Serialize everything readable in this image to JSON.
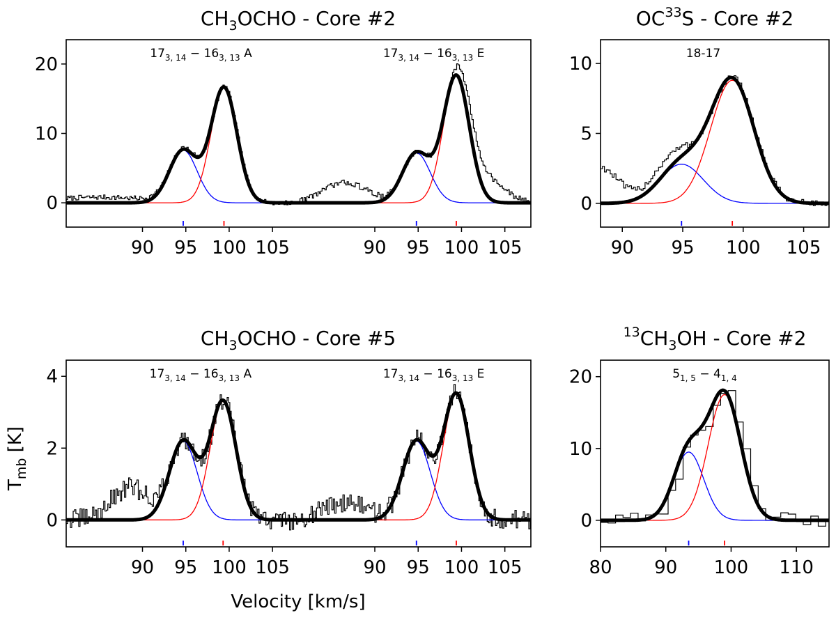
{
  "figure": {
    "ylabel_main": "T",
    "ylabel_sub": "mb",
    "ylabel_unit": " [K]",
    "xlabel": "Velocity [km/s]"
  },
  "colors": {
    "data": "#000000",
    "total_fit": "#000000",
    "component_low_v": "#0000ff",
    "component_high_v": "#ff0000"
  },
  "chart_data": [
    {
      "id": "ch3ocho-core2",
      "type": "line",
      "title_parts": [
        "CH",
        "3",
        "OCHO - Core #2"
      ],
      "title_text": "CH3OCHO - Core #2",
      "ylim": [
        -3.5,
        23.5
      ],
      "yticks": [
        0,
        10,
        20
      ],
      "sub_panels": [
        {
          "xlim": [
            81.2,
            108.0
          ],
          "xticks": [
            90,
            95,
            100,
            105
          ],
          "transition": {
            "main": "17",
            "sub1": "3, 14",
            "mid": " − 16",
            "sub2": "3, 13",
            "suffix": " A"
          },
          "components": [
            {
              "center": 94.7,
              "amplitude": 7.6,
              "sigma": 1.6
            },
            {
              "center": 99.4,
              "amplitude": 16.6,
              "sigma": 1.5
            }
          ],
          "noise": 0.35,
          "baseline_bumps": [
            {
              "center": 85,
              "amplitude": 0.8,
              "sigma": 6
            }
          ]
        },
        {
          "xlim": [
            81.2,
            108.0
          ],
          "xticks": [
            90,
            95,
            100,
            105
          ],
          "transition": {
            "main": "17",
            "sub1": "3, 14",
            "mid": " − 16",
            "sub2": "3, 13",
            "suffix": " E"
          },
          "components": [
            {
              "center": 94.8,
              "amplitude": 7.2,
              "sigma": 1.6
            },
            {
              "center": 99.4,
              "amplitude": 18.3,
              "sigma": 1.5
            }
          ],
          "noise": 0.4,
          "baseline_bumps": [
            {
              "center": 86.5,
              "amplitude": 2.9,
              "sigma": 2.6
            },
            {
              "center": 102.5,
              "amplitude": 3.5,
              "sigma": 2.2
            }
          ]
        }
      ]
    },
    {
      "id": "oc33s-core2",
      "type": "line",
      "title_parts": [
        "OC",
        "33",
        "S - Core #2"
      ],
      "title_text": "OC33S - Core #2",
      "ylim": [
        -1.7,
        11.7
      ],
      "yticks": [
        0,
        5,
        10
      ],
      "sub_panels": [
        {
          "xlim": [
            88.2,
            107.1
          ],
          "xticks": [
            90,
            95,
            100,
            105
          ],
          "transition": {
            "main": "18-17",
            "sub1": "",
            "mid": "",
            "sub2": "",
            "suffix": ""
          },
          "components": [
            {
              "center": 94.9,
              "amplitude": 2.8,
              "sigma": 1.8
            },
            {
              "center": 99.1,
              "amplitude": 8.8,
              "sigma": 1.8
            }
          ],
          "noise": 0.25,
          "baseline_bumps": [
            {
              "center": 88.0,
              "amplitude": 2.6,
              "sigma": 1.6
            },
            {
              "center": 93.5,
              "amplitude": 1.0,
              "sigma": 1.5
            }
          ]
        }
      ]
    },
    {
      "id": "ch3ocho-core5",
      "type": "line",
      "title_parts": [
        "CH",
        "3",
        "OCHO - Core #5"
      ],
      "title_text": "CH3OCHO - Core #5",
      "ylim": [
        -0.75,
        4.45
      ],
      "yticks": [
        0,
        2,
        4
      ],
      "sub_panels": [
        {
          "xlim": [
            81.2,
            108.0
          ],
          "xticks": [
            90,
            95,
            100,
            105
          ],
          "transition": {
            "main": "17",
            "sub1": "3, 14",
            "mid": " − 16",
            "sub2": "3, 13",
            "suffix": " A"
          },
          "components": [
            {
              "center": 94.7,
              "amplitude": 2.2,
              "sigma": 1.6
            },
            {
              "center": 99.3,
              "amplitude": 3.3,
              "sigma": 1.5
            }
          ],
          "noise": 0.28,
          "baseline_bumps": [
            {
              "center": 88.5,
              "amplitude": 0.9,
              "sigma": 2.2
            }
          ]
        },
        {
          "xlim": [
            81.2,
            108.0
          ],
          "xticks": [
            90,
            95,
            100,
            105
          ],
          "transition": {
            "main": "17",
            "sub1": "3, 14",
            "mid": " − 16",
            "sub2": "3, 13",
            "suffix": " E"
          },
          "components": [
            {
              "center": 94.8,
              "amplitude": 2.2,
              "sigma": 1.6
            },
            {
              "center": 99.4,
              "amplitude": 3.5,
              "sigma": 1.5
            }
          ],
          "noise": 0.28,
          "baseline_bumps": [
            {
              "center": 86.5,
              "amplitude": 0.5,
              "sigma": 2.5
            }
          ]
        }
      ]
    },
    {
      "id": "13ch3oh-core2",
      "type": "line",
      "title_parts": [
        "13",
        "CH",
        "3",
        "OH - Core #2"
      ],
      "title_text": "13CH3OH - Core #2",
      "ylim": [
        -3.7,
        22.3
      ],
      "yticks": [
        0,
        10,
        20
      ],
      "sub_panels": [
        {
          "xlim": [
            80.0,
            115.0
          ],
          "xticks": [
            80,
            90,
            100,
            110
          ],
          "transition": {
            "main": "5",
            "sub1": "1, 5",
            "mid": " − 4",
            "sub2": "1, 4",
            "suffix": ""
          },
          "components": [
            {
              "center": 93.5,
              "amplitude": 9.5,
              "sigma": 2.3
            },
            {
              "center": 99.0,
              "amplitude": 17.5,
              "sigma": 2.5
            }
          ],
          "noise": 1.0,
          "step_width": 1.15,
          "baseline_bumps": []
        }
      ]
    }
  ]
}
